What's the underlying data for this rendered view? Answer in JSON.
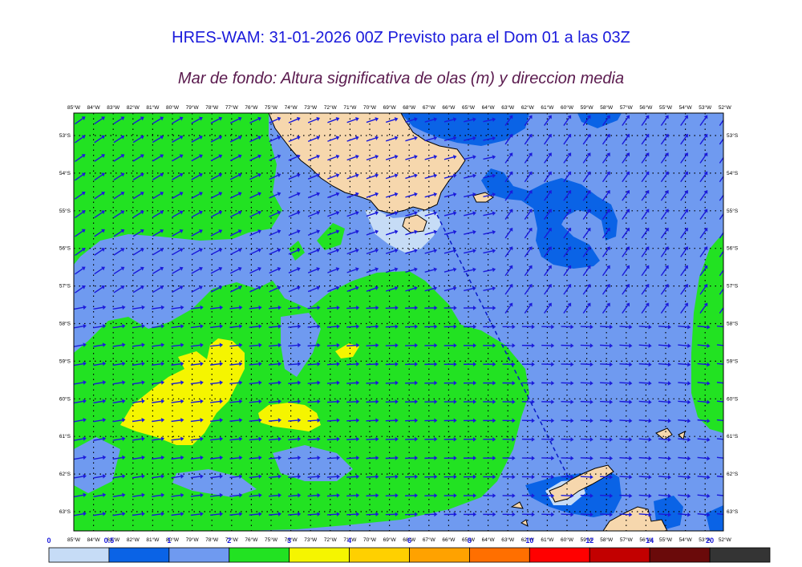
{
  "title": "HRES-WAM: 31-01-2026 00Z Previsto para el Dom 01 a las 03Z",
  "subtitle": "Mar de fondo: Altura significativa de olas (m) y direccion media",
  "lon_labels": [
    "85°W",
    "84°W",
    "83°W",
    "82°W",
    "81°W",
    "80°W",
    "79°W",
    "78°W",
    "77°W",
    "76°W",
    "75°W",
    "74°W",
    "73°W",
    "72°W",
    "71°W",
    "70°W",
    "69°W",
    "68°W",
    "67°W",
    "66°W",
    "65°W",
    "64°W",
    "63°W",
    "62°W",
    "61°W",
    "60°W",
    "59°W",
    "58°W",
    "57°W",
    "56°W",
    "55°W",
    "54°W",
    "53°W",
    "52°W"
  ],
  "lat_labels": [
    "53°S",
    "54°S",
    "55°S",
    "56°S",
    "57°S",
    "58°S",
    "59°S",
    "60°S",
    "61°S",
    "62°S",
    "63°S"
  ],
  "legend": {
    "ticks": [
      "0",
      "0.5",
      "1",
      "2",
      "3",
      "4",
      "6",
      "8",
      "10",
      "12",
      "14",
      "20"
    ],
    "colors": [
      "#c6dcf6",
      "#0a63e6",
      "#6f9af0",
      "#22e222",
      "#f5f500",
      "#ffd000",
      "#ffa200",
      "#ff6f00",
      "#ff0000",
      "#c20000",
      "#6a0a0a",
      "#343434"
    ]
  },
  "palette": {
    "land": "#f6d7ad",
    "sea_pale": "#c6dcf6",
    "sea_dark_blue": "#0a63e6",
    "sea_light_blue": "#6f9af0",
    "sea_green": "#22e222",
    "sea_yellow": "#f5f500",
    "arrow": "#1a1adb",
    "grid": "#000000",
    "track": "#0a1ac8"
  }
}
